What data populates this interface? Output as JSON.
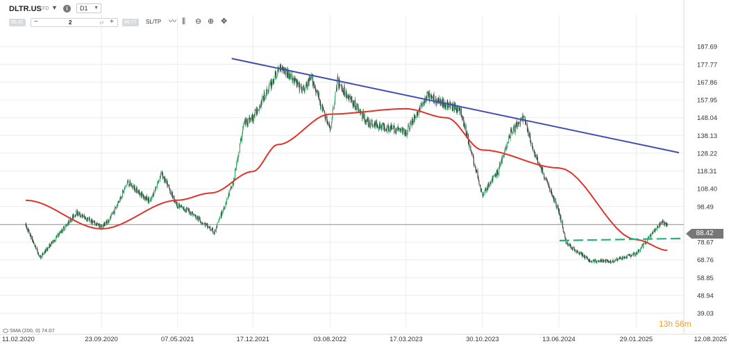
{
  "header": {
    "symbol": "DLTR.US",
    "symbol_type": "CFD",
    "timeframe": "D1",
    "sell_price": "88.42",
    "buy_price": "88.77",
    "quantity": "2",
    "sltp_label": "SL/TP"
  },
  "current_price_badge": "88.42",
  "indicator_label": "SMA (200, 0) 74.07",
  "countdown": {
    "hours": "13h",
    "minutes": "56m"
  },
  "colors": {
    "up_candle": "#26a65b",
    "down_candle": "#333333",
    "sma": "#e0312b",
    "trendline": "#3f4db5",
    "support": "#1fb37a",
    "price_line": "#8c8c8c"
  },
  "chart_data": {
    "type": "candlestick",
    "symbol": "DLTR.US",
    "timeframe": "D1",
    "ylim": [
      39.03,
      197.59
    ],
    "y_ticks": [
      "187.69",
      "177.77",
      "167.86",
      "157.95",
      "148.04",
      "138.13",
      "128.22",
      "118.31",
      "108.40",
      "98.49",
      "78.67",
      "68.76",
      "58.85",
      "48.94",
      "39.03"
    ],
    "x_ticks": [
      "11.02.2020",
      "23.09.2020",
      "07.05.2021",
      "17.12.2021",
      "03.08.2022",
      "17.03.2023",
      "30.10.2023",
      "13.06.2024",
      "29.01.2025",
      "12.08.2025"
    ],
    "current_price": 88.42,
    "close_series": [
      {
        "x": "11.02.2020",
        "y": 88
      },
      {
        "x": "25.03.2020",
        "y": 70
      },
      {
        "x": "15.05.2020",
        "y": 82
      },
      {
        "x": "10.07.2020",
        "y": 95
      },
      {
        "x": "23.09.2020",
        "y": 87
      },
      {
        "x": "20.10.2020",
        "y": 92
      },
      {
        "x": "10.12.2020",
        "y": 112
      },
      {
        "x": "15.02.2021",
        "y": 101
      },
      {
        "x": "20.03.2021",
        "y": 117
      },
      {
        "x": "07.05.2021",
        "y": 99
      },
      {
        "x": "10.06.2021",
        "y": 96
      },
      {
        "x": "25.08.2021",
        "y": 84
      },
      {
        "x": "20.10.2021",
        "y": 112
      },
      {
        "x": "20.11.2021",
        "y": 145
      },
      {
        "x": "17.12.2021",
        "y": 148
      },
      {
        "x": "10.03.2022",
        "y": 177
      },
      {
        "x": "15.05.2022",
        "y": 163
      },
      {
        "x": "10.06.2022",
        "y": 170
      },
      {
        "x": "03.08.2022",
        "y": 141
      },
      {
        "x": "25.08.2022",
        "y": 168
      },
      {
        "x": "25.11.2022",
        "y": 145
      },
      {
        "x": "17.03.2023",
        "y": 140
      },
      {
        "x": "20.05.2023",
        "y": 160
      },
      {
        "x": "25.08.2023",
        "y": 152
      },
      {
        "x": "30.10.2023",
        "y": 105
      },
      {
        "x": "15.12.2023",
        "y": 118
      },
      {
        "x": "22.01.2024",
        "y": 140
      },
      {
        "x": "01.03.2024",
        "y": 148
      },
      {
        "x": "25.03.2024",
        "y": 132
      },
      {
        "x": "13.06.2024",
        "y": 96
      },
      {
        "x": "05.07.2024",
        "y": 78
      },
      {
        "x": "15.09.2024",
        "y": 68
      },
      {
        "x": "15.11.2024",
        "y": 68
      },
      {
        "x": "29.01.2025",
        "y": 72
      },
      {
        "x": "15.04.2025",
        "y": 90
      },
      {
        "x": "01.05.2025",
        "y": 88
      }
    ],
    "sma_series": [
      {
        "x": "11.02.2020",
        "y": 102
      },
      {
        "x": "23.09.2020",
        "y": 86
      },
      {
        "x": "07.05.2021",
        "y": 102
      },
      {
        "x": "15.08.2021",
        "y": 106
      },
      {
        "x": "17.12.2021",
        "y": 118
      },
      {
        "x": "01.03.2022",
        "y": 133
      },
      {
        "x": "03.08.2022",
        "y": 150
      },
      {
        "x": "17.03.2023",
        "y": 153
      },
      {
        "x": "15.07.2023",
        "y": 148
      },
      {
        "x": "30.10.2023",
        "y": 130
      },
      {
        "x": "13.06.2024",
        "y": 120
      },
      {
        "x": "29.01.2025",
        "y": 80
      },
      {
        "x": "01.05.2025",
        "y": 74.07
      }
    ],
    "trendline": [
      {
        "x": "15.10.2021",
        "y": 181
      },
      {
        "x": "12.08.2025",
        "y": 128.5
      }
    ],
    "support_line": {
      "x": [
        "15.06.2024",
        "12.08.2025"
      ],
      "y_start": 79.5,
      "y_end": 80.7,
      "style": "dashed"
    },
    "grid": true
  }
}
